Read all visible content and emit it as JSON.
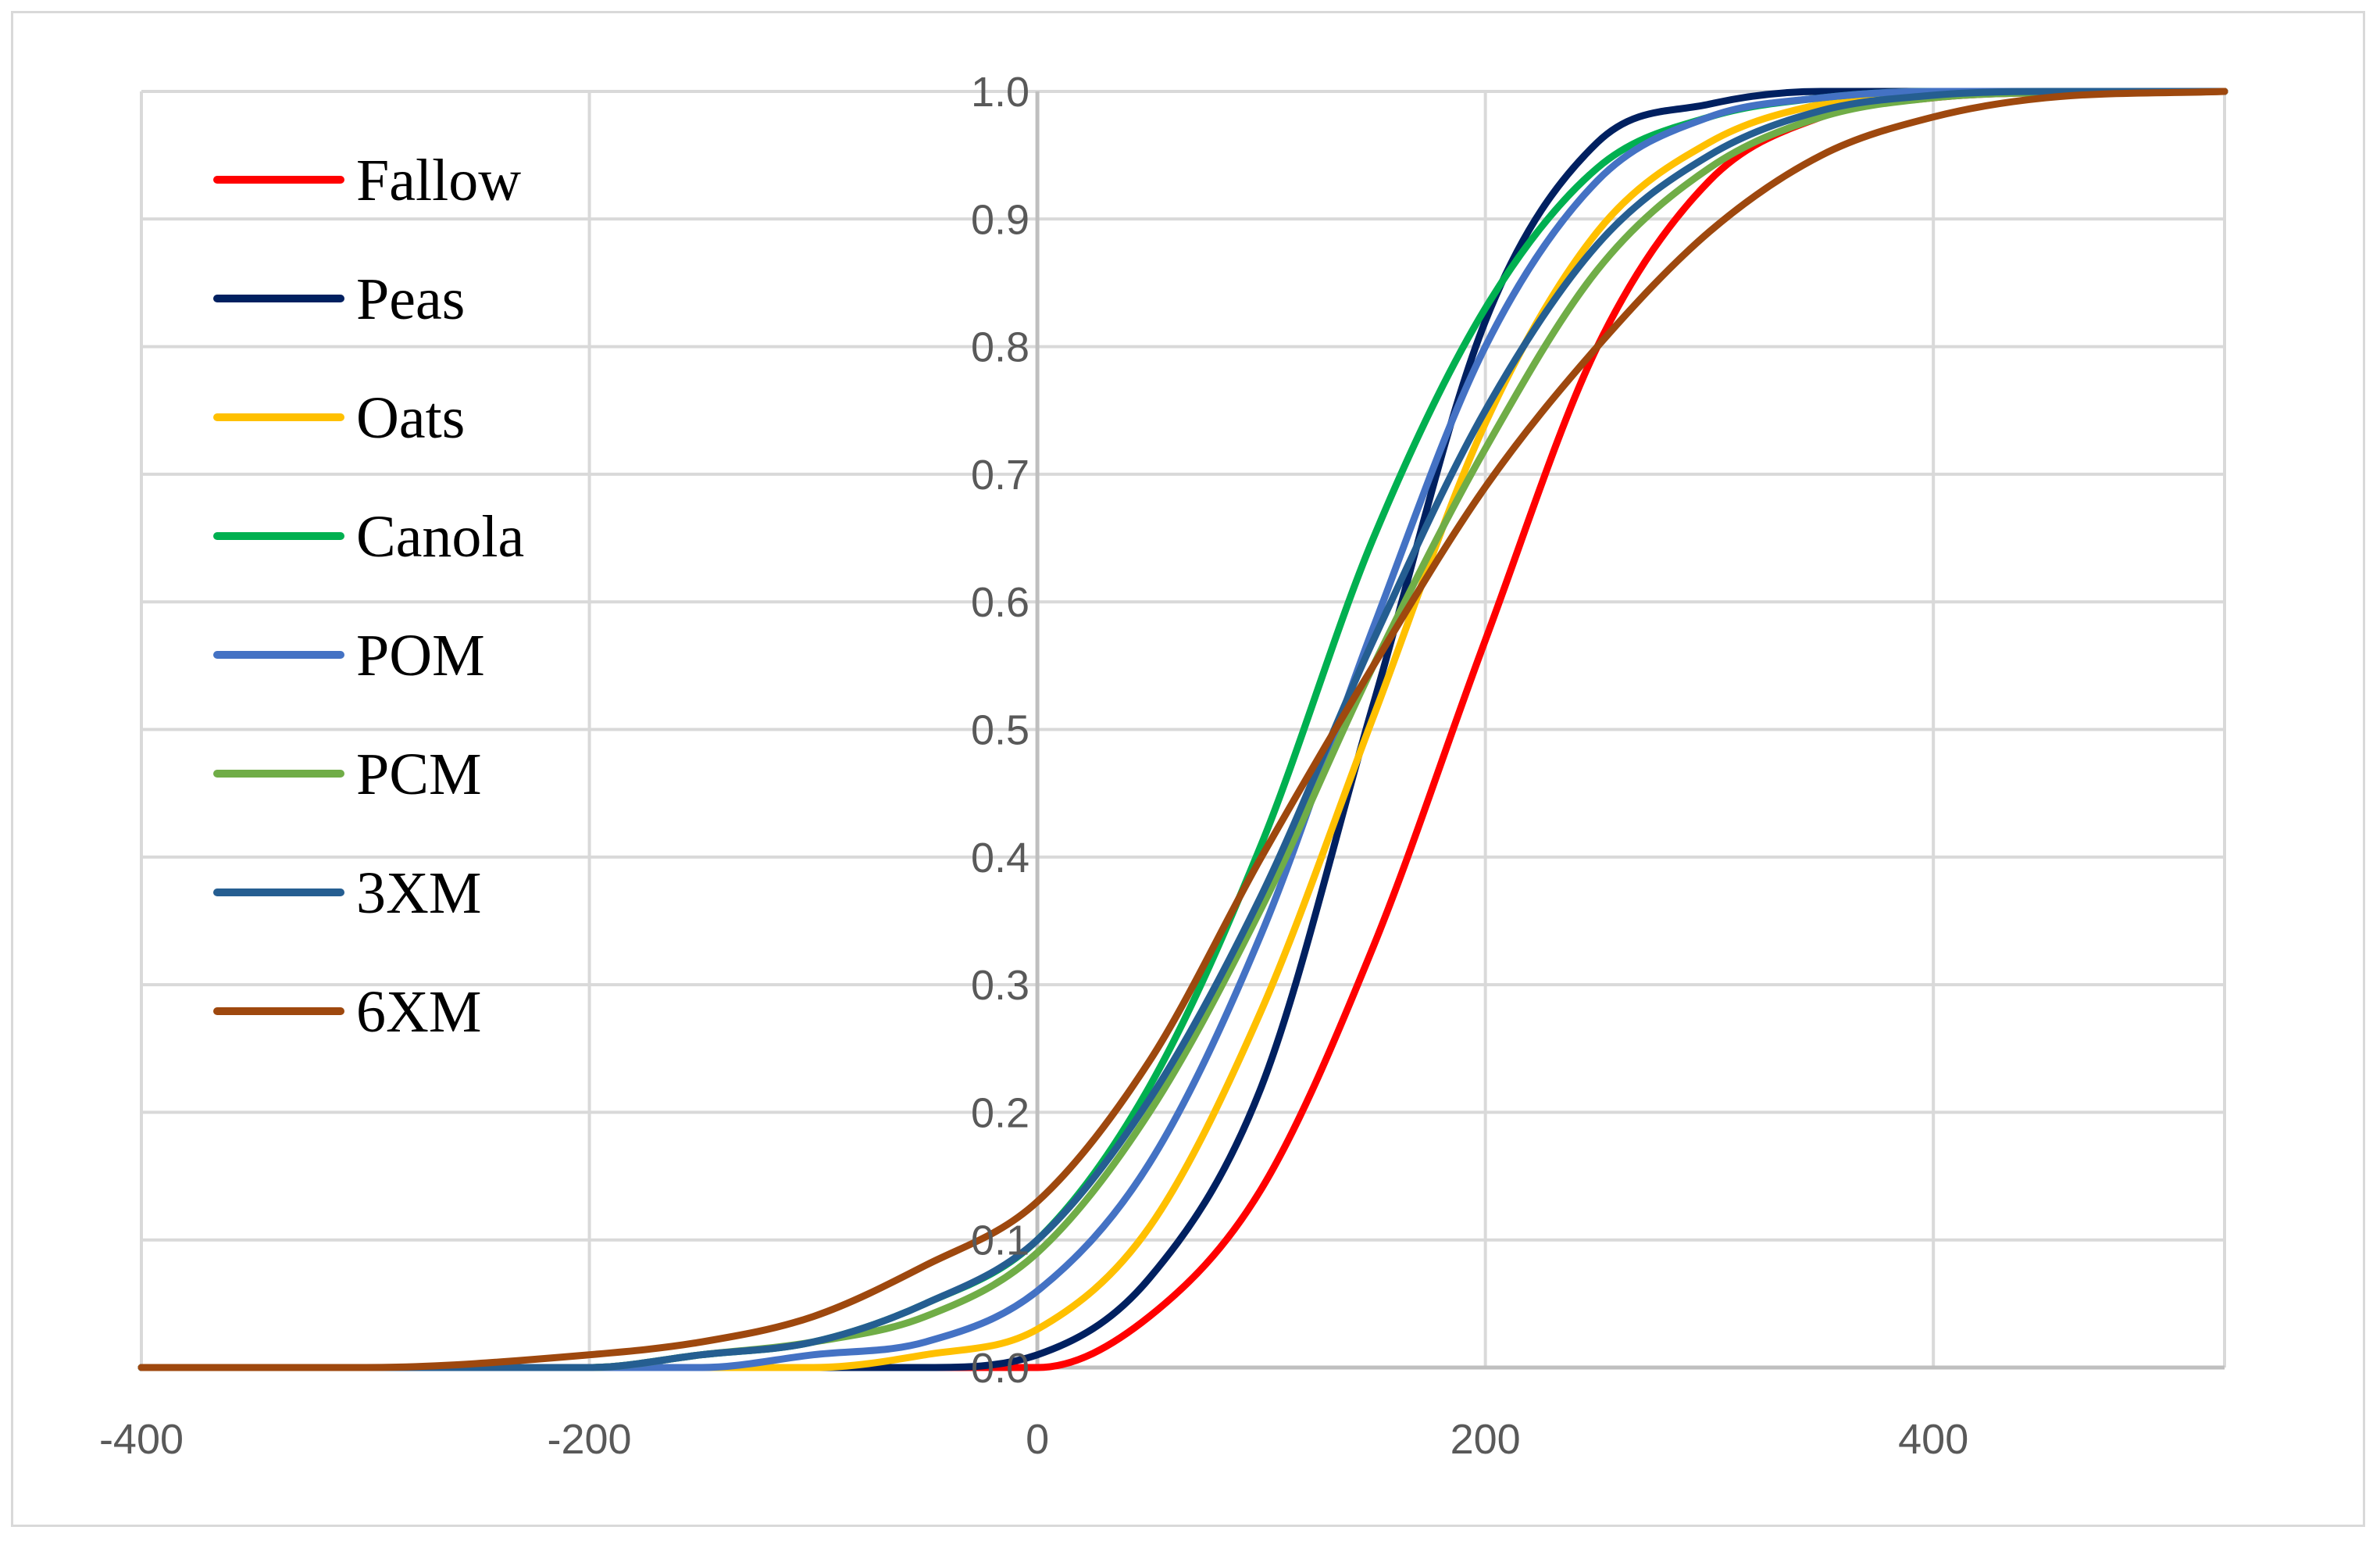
{
  "chart_data": {
    "type": "line",
    "title": "",
    "xlabel": "",
    "ylabel": "",
    "xlim": [
      -400,
      530
    ],
    "ylim": [
      0,
      1
    ],
    "x_ticks": [
      "-400",
      "-200",
      "0",
      "200",
      "400"
    ],
    "y_ticks": [
      "0.0",
      "0.1",
      "0.2",
      "0.3",
      "0.4",
      "0.5",
      "0.6",
      "0.7",
      "0.8",
      "0.9",
      "1.0"
    ],
    "grid": true,
    "legend_position": "top-left",
    "x": [
      -400,
      -300,
      -200,
      -150,
      -100,
      -50,
      0,
      50,
      100,
      150,
      200,
      250,
      300,
      350,
      400,
      450,
      530
    ],
    "series": [
      {
        "name": "Fallow",
        "color": "#ff0000",
        "values": [
          0.0,
          0.0,
          0.0,
          0.0,
          0.0,
          0.0,
          0.0,
          0.04,
          0.14,
          0.33,
          0.57,
          0.8,
          0.93,
          0.98,
          0.995,
          0.999,
          1.0
        ]
      },
      {
        "name": "Peas",
        "color": "#002060",
        "values": [
          0.0,
          0.0,
          0.0,
          0.0,
          0.0,
          0.0,
          0.01,
          0.07,
          0.22,
          0.52,
          0.82,
          0.96,
          0.99,
          1.0,
          1.0,
          1.0,
          1.0
        ]
      },
      {
        "name": "Oats",
        "color": "#ffc000",
        "values": [
          0.0,
          0.0,
          0.0,
          0.0,
          0.0,
          0.01,
          0.03,
          0.11,
          0.28,
          0.51,
          0.74,
          0.89,
          0.96,
          0.99,
          0.997,
          1.0,
          1.0
        ]
      },
      {
        "name": "Canola",
        "color": "#00b050",
        "values": [
          0.0,
          0.0,
          0.0,
          0.01,
          0.02,
          0.05,
          0.1,
          0.22,
          0.41,
          0.65,
          0.83,
          0.94,
          0.98,
          0.995,
          1.0,
          1.0,
          1.0
        ]
      },
      {
        "name": "POM",
        "color": "#4472c4",
        "values": [
          0.0,
          0.0,
          0.0,
          0.0,
          0.01,
          0.02,
          0.06,
          0.16,
          0.34,
          0.58,
          0.8,
          0.93,
          0.98,
          0.995,
          1.0,
          1.0,
          1.0
        ]
      },
      {
        "name": "PCM",
        "color": "#70ad47",
        "values": [
          0.0,
          0.0,
          0.0,
          0.01,
          0.02,
          0.04,
          0.09,
          0.2,
          0.36,
          0.55,
          0.72,
          0.86,
          0.94,
          0.98,
          0.995,
          0.999,
          1.0
        ]
      },
      {
        "name": "3XM",
        "color": "#255e91",
        "values": [
          0.0,
          0.0,
          0.0,
          0.01,
          0.02,
          0.05,
          0.1,
          0.21,
          0.37,
          0.57,
          0.75,
          0.88,
          0.95,
          0.985,
          0.997,
          1.0,
          1.0
        ]
      },
      {
        "name": "6XM",
        "color": "#9e480e",
        "values": [
          0.0,
          0.0,
          0.01,
          0.02,
          0.04,
          0.08,
          0.13,
          0.24,
          0.4,
          0.55,
          0.69,
          0.8,
          0.89,
          0.95,
          0.98,
          0.995,
          1.0
        ]
      }
    ]
  }
}
